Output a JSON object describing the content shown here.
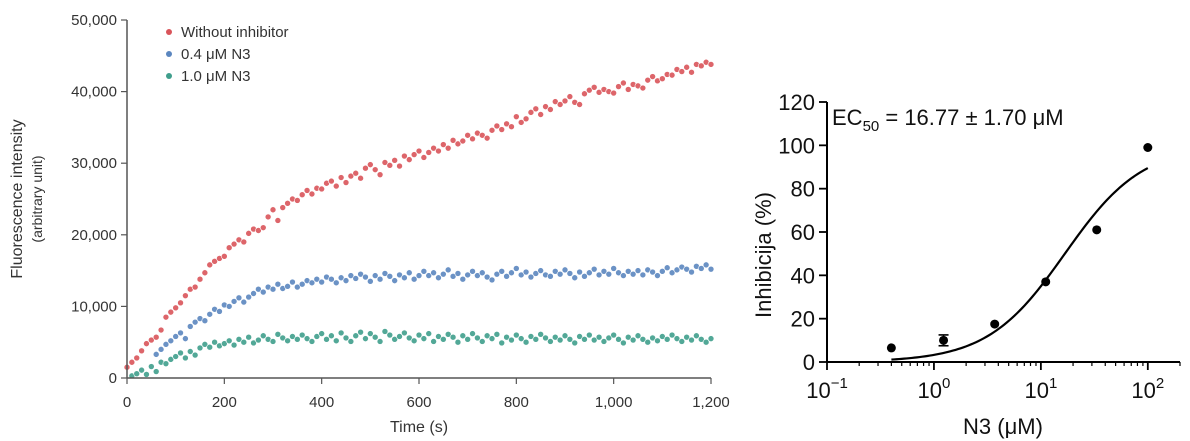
{
  "chart_data": [
    {
      "type": "scatter",
      "title": "",
      "xlabel": "Time (s)",
      "ylabel": "Fluorescence intensity",
      "ylabel_sub": "(arbitrary unit)",
      "xlim": [
        0,
        1200
      ],
      "ylim": [
        0,
        50000
      ],
      "xticks": [
        0,
        200,
        400,
        600,
        800,
        1000,
        1200
      ],
      "xtick_labels": [
        "0",
        "200",
        "400",
        "600",
        "800",
        "1,000",
        "1,200"
      ],
      "yticks": [
        0,
        10000,
        20000,
        30000,
        40000,
        50000
      ],
      "ytick_labels": [
        "0",
        "10,000",
        "20,000",
        "30,000",
        "40,000",
        "50,000"
      ],
      "grid": false,
      "legend_position": "top-left",
      "series": [
        {
          "name": "Without inhibitor",
          "color": "#d9545a",
          "x": [
            0,
            10,
            20,
            30,
            40,
            50,
            60,
            70,
            80,
            90,
            100,
            110,
            120,
            130,
            140,
            150,
            160,
            170,
            180,
            190,
            200,
            210,
            220,
            230,
            240,
            250,
            260,
            270,
            280,
            290,
            300,
            310,
            320,
            330,
            340,
            350,
            360,
            370,
            380,
            390,
            400,
            410,
            420,
            430,
            440,
            450,
            460,
            470,
            480,
            490,
            500,
            510,
            520,
            530,
            540,
            550,
            560,
            570,
            580,
            590,
            600,
            610,
            620,
            630,
            640,
            650,
            660,
            670,
            680,
            690,
            700,
            710,
            720,
            730,
            740,
            750,
            760,
            770,
            780,
            790,
            800,
            810,
            820,
            830,
            840,
            850,
            860,
            870,
            880,
            890,
            900,
            910,
            920,
            930,
            940,
            950,
            960,
            970,
            980,
            990,
            1000,
            1010,
            1020,
            1030,
            1040,
            1050,
            1060,
            1070,
            1080,
            1090,
            1100,
            1110,
            1120,
            1130,
            1140,
            1150,
            1160,
            1170,
            1180,
            1190,
            1200
          ],
          "values": [
            1500,
            2200,
            2800,
            3800,
            4800,
            5300,
            5700,
            6700,
            8500,
            9200,
            9800,
            10500,
            11500,
            12400,
            12700,
            13800,
            14700,
            15800,
            16300,
            16700,
            17000,
            18200,
            18700,
            19300,
            19000,
            20200,
            20800,
            20600,
            21000,
            22500,
            23500,
            22000,
            23800,
            24400,
            25000,
            24800,
            25600,
            26200,
            25700,
            26500,
            26400,
            27200,
            27500,
            26800,
            28000,
            27300,
            28200,
            28600,
            27900,
            29300,
            29800,
            29100,
            28400,
            30100,
            29700,
            30400,
            29600,
            31000,
            30500,
            31200,
            31700,
            30800,
            31500,
            32100,
            31700,
            32600,
            32100,
            33200,
            32700,
            33100,
            33900,
            33400,
            34200,
            33900,
            33500,
            34600,
            35200,
            34700,
            35500,
            35100,
            36500,
            35700,
            36200,
            37100,
            37600,
            36800,
            37900,
            37500,
            38600,
            38200,
            38700,
            39300,
            38500,
            38200,
            39700,
            40200,
            40600,
            39900,
            40300,
            40000,
            39800,
            40700,
            41200,
            40300,
            41000,
            40800,
            40500,
            41600,
            42100,
            41500,
            41800,
            42400,
            42300,
            43100,
            42800,
            43400,
            42700,
            43800,
            43600,
            44100,
            43800
          ]
        },
        {
          "name": "0.4 μM N3",
          "color": "#5b86bf",
          "x": [
            60,
            70,
            80,
            90,
            100,
            110,
            120,
            130,
            140,
            150,
            160,
            170,
            180,
            190,
            200,
            210,
            220,
            230,
            240,
            250,
            260,
            270,
            280,
            290,
            300,
            310,
            320,
            330,
            340,
            350,
            360,
            370,
            380,
            390,
            400,
            410,
            420,
            430,
            440,
            450,
            460,
            470,
            480,
            490,
            500,
            510,
            520,
            530,
            540,
            550,
            560,
            570,
            580,
            590,
            600,
            610,
            620,
            630,
            640,
            650,
            660,
            670,
            680,
            690,
            700,
            710,
            720,
            730,
            740,
            750,
            760,
            770,
            780,
            790,
            800,
            810,
            820,
            830,
            840,
            850,
            860,
            870,
            880,
            890,
            900,
            910,
            920,
            930,
            940,
            950,
            960,
            970,
            980,
            990,
            1000,
            1010,
            1020,
            1030,
            1040,
            1050,
            1060,
            1070,
            1080,
            1090,
            1100,
            1110,
            1120,
            1130,
            1140,
            1150,
            1160,
            1170,
            1180,
            1190,
            1200
          ],
          "values": [
            3300,
            4000,
            4700,
            5200,
            5800,
            6300,
            5500,
            7200,
            7800,
            8300,
            8000,
            8900,
            9600,
            9300,
            10200,
            10000,
            10700,
            11200,
            10600,
            11300,
            11800,
            12400,
            12000,
            12700,
            12400,
            13100,
            12500,
            12800,
            13400,
            12700,
            13100,
            13600,
            13300,
            13800,
            13400,
            14100,
            13800,
            13300,
            14000,
            13600,
            14300,
            13900,
            14500,
            14100,
            13500,
            14300,
            13800,
            14600,
            14200,
            13600,
            14400,
            14000,
            14700,
            13800,
            14300,
            14900,
            14300,
            14700,
            14000,
            14500,
            15100,
            14200,
            14600,
            13800,
            14400,
            14900,
            14300,
            14700,
            14100,
            13700,
            14500,
            14900,
            14200,
            14700,
            15300,
            14400,
            14800,
            14100,
            14600,
            15000,
            14400,
            14200,
            14900,
            14500,
            15100,
            14600,
            14000,
            14800,
            14200,
            14700,
            15200,
            14400,
            14900,
            14500,
            15300,
            14700,
            14300,
            14900,
            14500,
            15000,
            14400,
            15100,
            14800,
            14300,
            14900,
            15400,
            14700,
            15100,
            15500,
            15200,
            14800,
            15600,
            15300,
            15800,
            15200
          ]
        },
        {
          "name": "1.0 μM N3",
          "color": "#3f9e8c",
          "x": [
            10,
            20,
            30,
            40,
            50,
            60,
            70,
            80,
            90,
            100,
            110,
            120,
            130,
            140,
            150,
            160,
            170,
            180,
            190,
            200,
            210,
            220,
            230,
            240,
            250,
            260,
            270,
            280,
            290,
            300,
            310,
            320,
            330,
            340,
            350,
            360,
            370,
            380,
            390,
            400,
            410,
            420,
            430,
            440,
            450,
            460,
            470,
            480,
            490,
            500,
            510,
            520,
            530,
            540,
            550,
            560,
            570,
            580,
            590,
            600,
            610,
            620,
            630,
            640,
            650,
            660,
            670,
            680,
            690,
            700,
            710,
            720,
            730,
            740,
            750,
            760,
            770,
            780,
            790,
            800,
            810,
            820,
            830,
            840,
            850,
            860,
            870,
            880,
            890,
            900,
            910,
            920,
            930,
            940,
            950,
            960,
            970,
            980,
            990,
            1000,
            1010,
            1020,
            1030,
            1040,
            1050,
            1060,
            1070,
            1080,
            1090,
            1100,
            1110,
            1120,
            1130,
            1140,
            1150,
            1160,
            1170,
            1180,
            1190,
            1200
          ],
          "values": [
            300,
            600,
            1100,
            500,
            1600,
            900,
            2200,
            2000,
            2600,
            3000,
            3500,
            2800,
            3700,
            3200,
            4200,
            4700,
            4300,
            5000,
            4500,
            4800,
            5200,
            4600,
            5400,
            5000,
            5700,
            4900,
            5300,
            5900,
            5400,
            5100,
            6100,
            5600,
            5200,
            5800,
            5400,
            6000,
            5500,
            5100,
            5800,
            6200,
            5400,
            5900,
            5200,
            6300,
            5600,
            5100,
            5900,
            6400,
            5500,
            6200,
            5700,
            5100,
            6500,
            6000,
            5400,
            5800,
            6300,
            5600,
            5200,
            6000,
            5500,
            6200,
            5100,
            5800,
            5400,
            6100,
            5700,
            5000,
            5900,
            5400,
            6200,
            5600,
            5100,
            5900,
            5500,
            6100,
            4900,
            5700,
            5300,
            6000,
            5500,
            5000,
            5800,
            5400,
            6100,
            5600,
            5100,
            5700,
            5300,
            5900,
            5400,
            4900,
            5800,
            5400,
            6000,
            5300,
            5700,
            5100,
            5600,
            6000,
            5400,
            4900,
            5700,
            5300,
            5900,
            5400,
            5000,
            5600,
            5200,
            5800,
            5400,
            6000,
            5500,
            5100,
            5700,
            5300,
            5900,
            5400,
            5000,
            5500
          ]
        }
      ]
    },
    {
      "type": "scatter",
      "title": "",
      "annotation": "EC50 = 16.77 ± 1.70 μM",
      "annotation_main": "EC",
      "annotation_sub": "50",
      "annotation_rest": " = 16.77 ± 1.70 μM",
      "xlabel": "N3 (μM)",
      "ylabel": "Inhibicija  (%)",
      "x_scale": "log",
      "xlim": [
        0.1,
        200
      ],
      "ylim": [
        0,
        120
      ],
      "xticks": [
        0.1,
        1,
        10,
        100
      ],
      "xtick_base": "10",
      "xtick_exponents": [
        "−1",
        "0",
        "1",
        "2"
      ],
      "yticks": [
        0,
        20,
        40,
        60,
        80,
        100,
        120
      ],
      "ytick_labels": [
        "0",
        "20",
        "40",
        "60",
        "80",
        "100",
        "120"
      ],
      "grid": false,
      "series": [
        {
          "name": "",
          "color": "#000000",
          "x": [
            0.4,
            1.23,
            3.7,
            11.1,
            33.3,
            100
          ],
          "values": [
            6.5,
            10,
            17.5,
            37,
            61,
            99
          ],
          "error": [
            0,
            2.5,
            0,
            0,
            0,
            0
          ]
        },
        {
          "name": "",
          "kind": "fit",
          "color": "#000000",
          "ec50": 16.77,
          "hill": 1.2,
          "bottom": 0,
          "top": 100,
          "x_range": [
            0.4,
            100
          ]
        }
      ]
    }
  ]
}
